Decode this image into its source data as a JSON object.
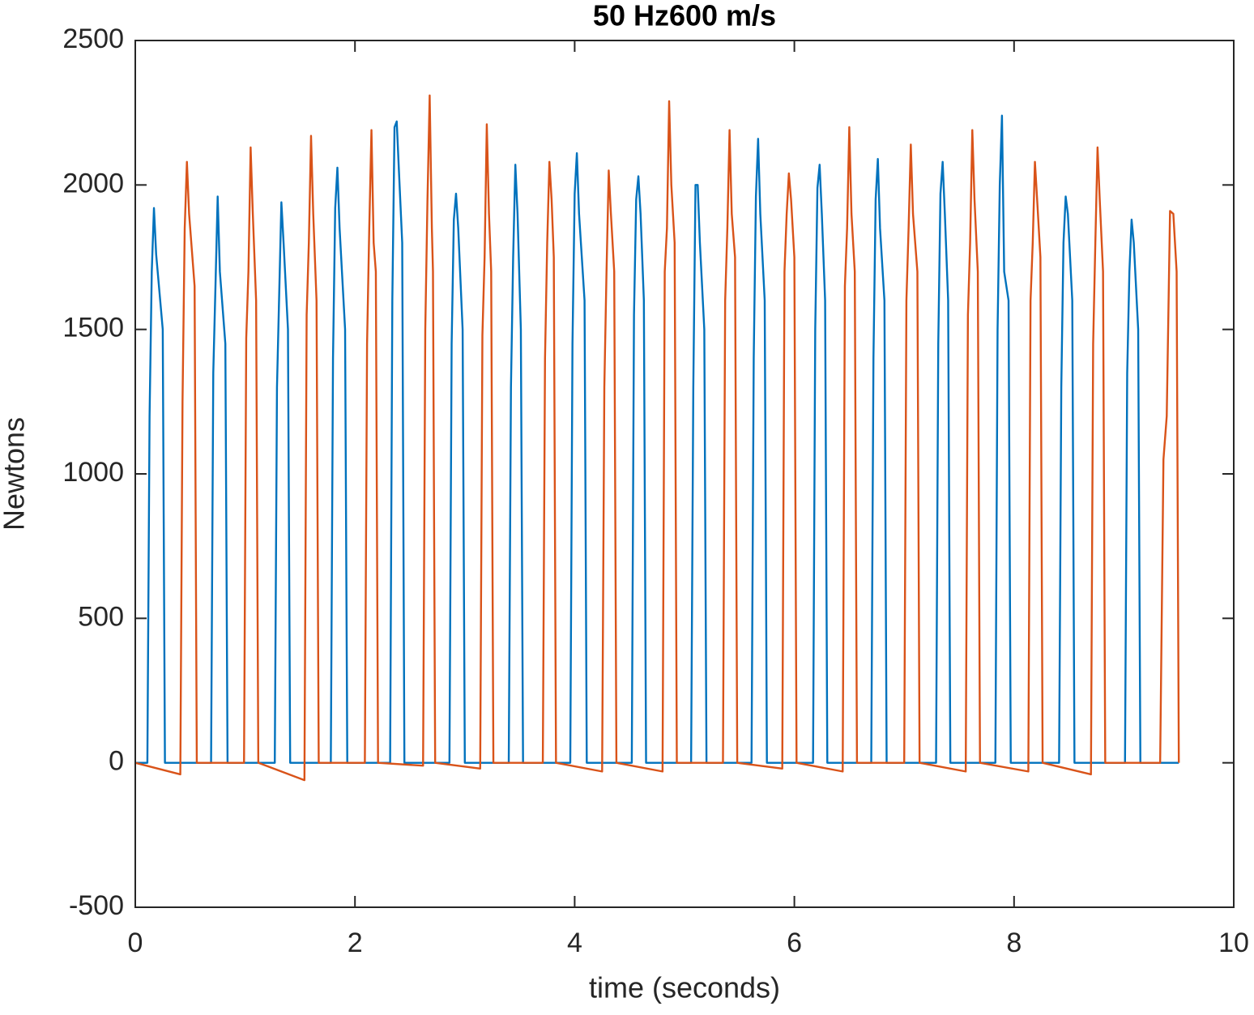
{
  "chart_data": {
    "type": "line",
    "title": "50 Hz600 m/s",
    "x_label": "time (seconds)",
    "y_label": "Newtons",
    "xlim": [
      0,
      10
    ],
    "xticks": [
      0,
      2,
      4,
      6,
      8,
      10
    ],
    "ylim": [
      -500,
      2500
    ],
    "yticks": [
      -500,
      0,
      500,
      1000,
      1500,
      2000,
      2500
    ],
    "grid": false,
    "series": [
      {
        "color": "#0072bd",
        "x": [
          0,
          0.11,
          0.13,
          0.15,
          0.17,
          0.19,
          0.25,
          0.27,
          0.69,
          0.71,
          0.73,
          0.75,
          0.77,
          0.82,
          0.84,
          1.27,
          1.29,
          1.31,
          1.33,
          1.35,
          1.39,
          1.41,
          1.78,
          1.8,
          1.82,
          1.84,
          1.86,
          1.91,
          1.93,
          2.32,
          2.34,
          2.36,
          2.38,
          2.4,
          2.43,
          2.45,
          2.86,
          2.88,
          2.9,
          2.92,
          2.94,
          2.98,
          3.0,
          3.4,
          3.42,
          3.44,
          3.46,
          3.48,
          3.51,
          3.53,
          3.96,
          3.98,
          4.0,
          4.02,
          4.04,
          4.09,
          4.11,
          4.52,
          4.54,
          4.56,
          4.58,
          4.6,
          4.63,
          4.65,
          5.06,
          5.08,
          5.1,
          5.12,
          5.14,
          5.18,
          5.2,
          5.61,
          5.63,
          5.65,
          5.67,
          5.69,
          5.73,
          5.75,
          6.17,
          6.19,
          6.21,
          6.23,
          6.25,
          6.28,
          6.3,
          6.7,
          6.72,
          6.74,
          6.76,
          6.78,
          6.82,
          6.84,
          7.29,
          7.31,
          7.33,
          7.35,
          7.37,
          7.4,
          7.42,
          7.83,
          7.85,
          7.87,
          7.89,
          7.91,
          7.95,
          7.97,
          8.41,
          8.43,
          8.45,
          8.47,
          8.49,
          8.53,
          8.55,
          9.01,
          9.03,
          9.05,
          9.07,
          9.09,
          9.13,
          9.15,
          9.5
        ],
        "values": [
          0,
          0,
          1200,
          1700,
          1920,
          1760,
          1500,
          0,
          0,
          1350,
          1650,
          1960,
          1700,
          1450,
          0,
          0,
          1300,
          1620,
          1940,
          1800,
          1500,
          0,
          0,
          1400,
          1920,
          2060,
          1850,
          1500,
          0,
          0,
          1600,
          2200,
          2220,
          2050,
          1800,
          0,
          0,
          1450,
          1880,
          1970,
          1850,
          1500,
          0,
          0,
          1300,
          1750,
          2070,
          1900,
          1500,
          0,
          0,
          1450,
          1970,
          2110,
          1900,
          1600,
          0,
          0,
          1550,
          1950,
          2030,
          1900,
          1600,
          0,
          0,
          1300,
          2000,
          2000,
          1800,
          1500,
          0,
          0,
          1400,
          1960,
          2160,
          1900,
          1600,
          0,
          0,
          1500,
          1990,
          2070,
          1900,
          1600,
          0,
          0,
          1400,
          1950,
          2090,
          1850,
          1600,
          0,
          0,
          1450,
          1970,
          2080,
          1900,
          1600,
          0,
          0,
          1500,
          2000,
          2240,
          1700,
          1600,
          0,
          0,
          1300,
          1800,
          1960,
          1900,
          1600,
          0,
          0,
          1350,
          1700,
          1880,
          1800,
          1500,
          0,
          0
        ]
      },
      {
        "color": "#d95319",
        "x": [
          0,
          0.41,
          0.43,
          0.45,
          0.47,
          0.49,
          0.54,
          0.56,
          0.99,
          1.01,
          1.03,
          1.05,
          1.07,
          1.1,
          1.12,
          1.54,
          1.56,
          1.58,
          1.6,
          1.62,
          1.65,
          1.67,
          2.09,
          2.11,
          2.13,
          2.15,
          2.17,
          2.19,
          2.21,
          2.62,
          2.64,
          2.66,
          2.68,
          2.7,
          2.71,
          2.73,
          3.14,
          3.16,
          3.18,
          3.2,
          3.22,
          3.24,
          3.26,
          3.71,
          3.73,
          3.75,
          3.77,
          3.79,
          3.81,
          3.83,
          4.25,
          4.27,
          4.29,
          4.31,
          4.33,
          4.36,
          4.38,
          4.8,
          4.82,
          4.84,
          4.86,
          4.88,
          4.91,
          4.93,
          5.35,
          5.37,
          5.39,
          5.41,
          5.43,
          5.46,
          5.48,
          5.89,
          5.91,
          5.93,
          5.95,
          5.97,
          6.0,
          6.02,
          6.44,
          6.46,
          6.48,
          6.5,
          6.52,
          6.55,
          6.57,
          7.0,
          7.02,
          7.04,
          7.06,
          7.08,
          7.12,
          7.14,
          7.56,
          7.58,
          7.6,
          7.62,
          7.64,
          7.67,
          7.69,
          8.13,
          8.15,
          8.17,
          8.19,
          8.21,
          8.24,
          8.26,
          8.7,
          8.72,
          8.74,
          8.76,
          8.78,
          8.81,
          8.83,
          9.33,
          9.36,
          9.39,
          9.42,
          9.45,
          9.48,
          9.5
        ],
        "values": [
          0,
          -40,
          1250,
          1850,
          2080,
          1900,
          1650,
          0,
          0,
          1470,
          1700,
          2130,
          1900,
          1600,
          0,
          -60,
          1550,
          1800,
          2170,
          1900,
          1600,
          0,
          0,
          1450,
          1850,
          2190,
          1800,
          1700,
          0,
          -10,
          1500,
          1950,
          2310,
          1850,
          1700,
          0,
          -20,
          1480,
          1750,
          2210,
          1900,
          1700,
          0,
          0,
          1400,
          1800,
          2080,
          1950,
          1750,
          0,
          -30,
          1300,
          1700,
          2050,
          1900,
          1700,
          0,
          -30,
          1700,
          1850,
          2290,
          2000,
          1800,
          0,
          0,
          1600,
          1850,
          2190,
          1900,
          1750,
          0,
          -20,
          1700,
          1900,
          2040,
          1950,
          1750,
          0,
          -30,
          1650,
          1850,
          2200,
          1900,
          1700,
          0,
          0,
          1600,
          1850,
          2140,
          1900,
          1700,
          0,
          -30,
          1550,
          1800,
          2190,
          1950,
          1700,
          0,
          -30,
          1600,
          1800,
          2080,
          1950,
          1750,
          0,
          -40,
          1450,
          1800,
          2130,
          1950,
          1700,
          0,
          0,
          1050,
          1200,
          1910,
          1900,
          1700,
          0
        ]
      }
    ]
  }
}
